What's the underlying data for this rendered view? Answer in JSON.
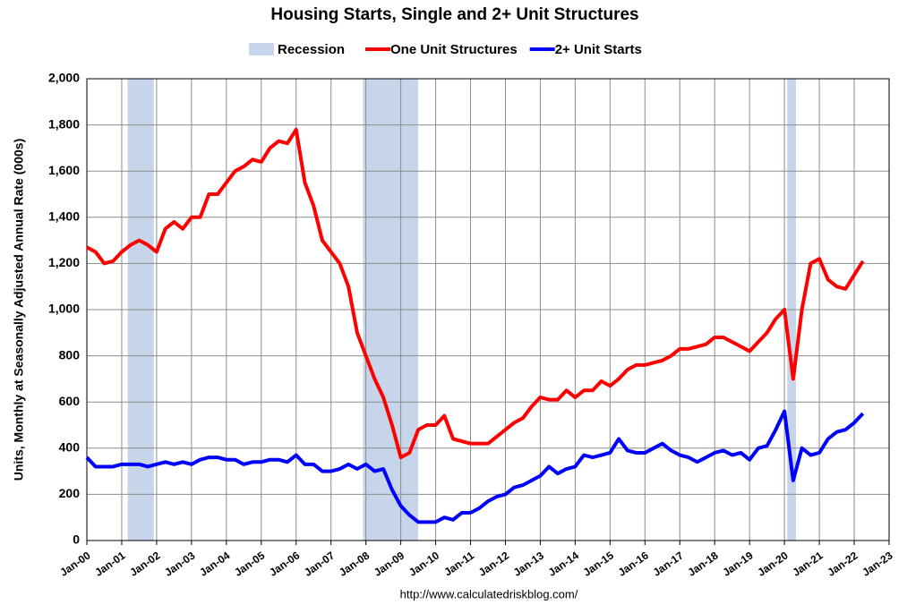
{
  "chart_data": {
    "type": "line",
    "title": "Housing Starts, Single and 2+ Unit Structures",
    "y_label": "Units, Monthly at Seasonally Adjusted Annual Rate (000s)",
    "source": "http://www.calculatedriskblog.com/",
    "recession_name": "Recession",
    "recession_color": "#c6d5e9",
    "recessions": [
      [
        2001.17,
        2001.92
      ],
      [
        2007.92,
        2009.5
      ],
      [
        2020.08,
        2020.33
      ]
    ],
    "x": [
      2000,
      2000.25,
      2000.5,
      2000.75,
      2001,
      2001.25,
      2001.5,
      2001.75,
      2002,
      2002.25,
      2002.5,
      2002.75,
      2003,
      2003.25,
      2003.5,
      2003.75,
      2004,
      2004.25,
      2004.5,
      2004.75,
      2005,
      2005.25,
      2005.5,
      2005.75,
      2006,
      2006.25,
      2006.5,
      2006.75,
      2007,
      2007.25,
      2007.5,
      2007.75,
      2008,
      2008.25,
      2008.5,
      2008.75,
      2009,
      2009.25,
      2009.5,
      2009.75,
      2010,
      2010.25,
      2010.5,
      2010.75,
      2011,
      2011.25,
      2011.5,
      2011.75,
      2012,
      2012.25,
      2012.5,
      2012.75,
      2013,
      2013.25,
      2013.5,
      2013.75,
      2014,
      2014.25,
      2014.5,
      2014.75,
      2015,
      2015.25,
      2015.5,
      2015.75,
      2016,
      2016.25,
      2016.5,
      2016.75,
      2017,
      2017.25,
      2017.5,
      2017.75,
      2018,
      2018.25,
      2018.5,
      2018.75,
      2019,
      2019.25,
      2019.5,
      2019.75,
      2020,
      2020.25,
      2020.5,
      2020.75,
      2021,
      2021.25,
      2021.5,
      2021.75,
      2022,
      2022.25
    ],
    "series": [
      {
        "name": "One Unit Structures",
        "color": "#ff0000",
        "values": [
          1270,
          1250,
          1200,
          1210,
          1250,
          1280,
          1300,
          1280,
          1250,
          1350,
          1380,
          1350,
          1400,
          1400,
          1500,
          1500,
          1550,
          1600,
          1620,
          1650,
          1640,
          1700,
          1730,
          1720,
          1780,
          1550,
          1450,
          1300,
          1250,
          1200,
          1100,
          900,
          800,
          700,
          620,
          500,
          360,
          380,
          480,
          500,
          500,
          540,
          440,
          430,
          420,
          420,
          420,
          450,
          480,
          510,
          530,
          580,
          620,
          610,
          610,
          650,
          620,
          650,
          650,
          690,
          670,
          700,
          740,
          760,
          760,
          770,
          780,
          800,
          830,
          830,
          840,
          850,
          880,
          880,
          860,
          840,
          820,
          860,
          900,
          960,
          1000,
          700,
          1000,
          1200,
          1220,
          1130,
          1100,
          1090,
          1150,
          1210
        ]
      },
      {
        "name": "2+ Unit Starts",
        "color": "#0000ff",
        "values": [
          360,
          320,
          320,
          320,
          330,
          330,
          330,
          320,
          330,
          340,
          330,
          340,
          330,
          350,
          360,
          360,
          350,
          350,
          330,
          340,
          340,
          350,
          350,
          340,
          370,
          330,
          330,
          300,
          300,
          310,
          330,
          310,
          330,
          300,
          310,
          220,
          150,
          110,
          80,
          80,
          80,
          100,
          90,
          120,
          120,
          140,
          170,
          190,
          200,
          230,
          240,
          260,
          280,
          320,
          290,
          310,
          320,
          370,
          360,
          370,
          380,
          440,
          390,
          380,
          380,
          400,
          420,
          390,
          370,
          360,
          340,
          360,
          380,
          390,
          370,
          380,
          350,
          400,
          410,
          480,
          560,
          260,
          400,
          370,
          380,
          440,
          470,
          480,
          510,
          550
        ]
      }
    ],
    "xlim": [
      2000,
      2023
    ],
    "xticks": [
      {
        "value": 2000,
        "label": "Jan-00"
      },
      {
        "value": 2001,
        "label": "Jan-01"
      },
      {
        "value": 2002,
        "label": "Jan-02"
      },
      {
        "value": 2003,
        "label": "Jan-03"
      },
      {
        "value": 2004,
        "label": "Jan-04"
      },
      {
        "value": 2005,
        "label": "Jan-05"
      },
      {
        "value": 2006,
        "label": "Jan-06"
      },
      {
        "value": 2007,
        "label": "Jan-07"
      },
      {
        "value": 2008,
        "label": "Jan-08"
      },
      {
        "value": 2009,
        "label": "Jan-09"
      },
      {
        "value": 2010,
        "label": "Jan-10"
      },
      {
        "value": 2011,
        "label": "Jan-11"
      },
      {
        "value": 2012,
        "label": "Jan-12"
      },
      {
        "value": 2013,
        "label": "Jan-13"
      },
      {
        "value": 2014,
        "label": "Jan-14"
      },
      {
        "value": 2015,
        "label": "Jan-15"
      },
      {
        "value": 2016,
        "label": "Jan-16"
      },
      {
        "value": 2017,
        "label": "Jan-17"
      },
      {
        "value": 2018,
        "label": "Jan-18"
      },
      {
        "value": 2019,
        "label": "Jan-19"
      },
      {
        "value": 2020,
        "label": "Jan-20"
      },
      {
        "value": 2021,
        "label": "Jan-21"
      },
      {
        "value": 2022,
        "label": "Jan-22"
      },
      {
        "value": 2023,
        "label": "Jan-23"
      }
    ],
    "ylim": [
      0,
      2000
    ],
    "yticks": [
      0,
      200,
      400,
      600,
      800,
      {
        "value": 1000,
        "label": "1,000"
      },
      {
        "value": 1200,
        "label": "1,200"
      },
      {
        "value": 1400,
        "label": "1,400"
      },
      {
        "value": 1600,
        "label": "1,600"
      },
      {
        "value": 1800,
        "label": "1,800"
      },
      {
        "value": 2000,
        "label": "2,000"
      }
    ],
    "grid": true
  }
}
